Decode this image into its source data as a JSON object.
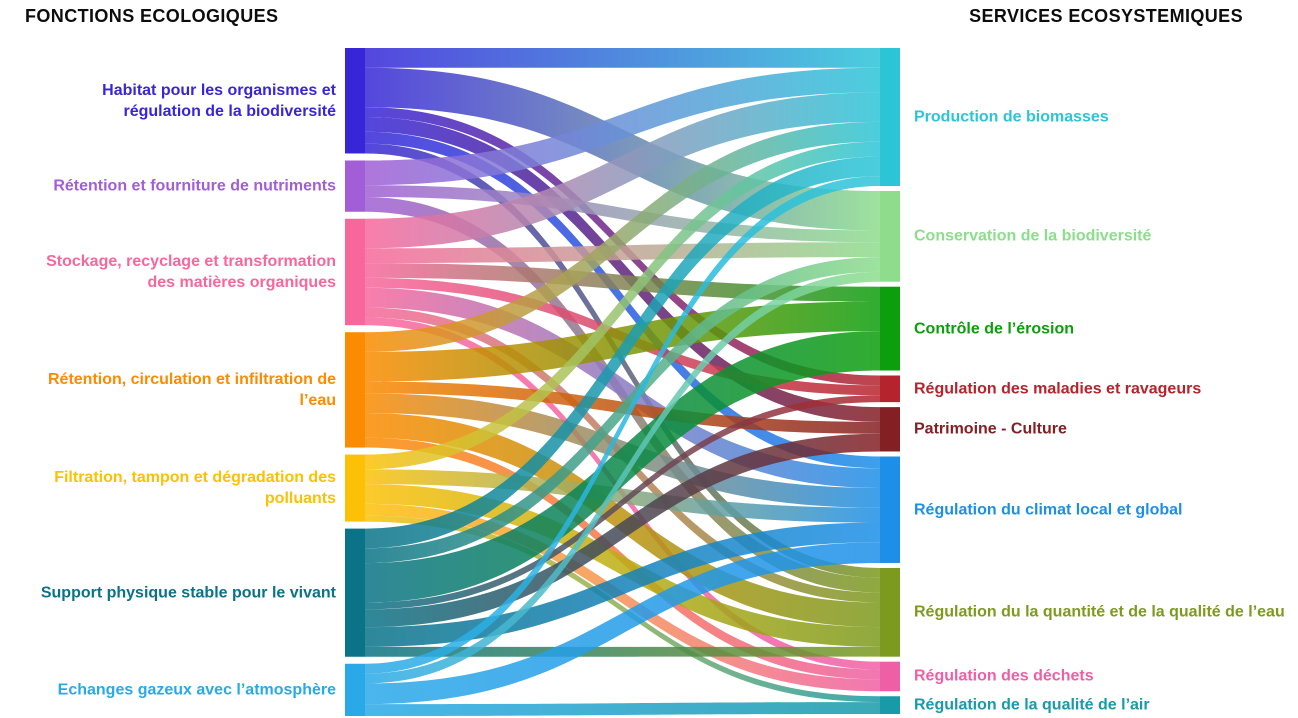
{
  "chart_data": {
    "type": "sankey",
    "left_title": "FONCTIONS ECOLOGIQUES",
    "right_title": "SERVICES ECOSYSTEMIQUES",
    "flow_style": "gradient-source-to-target",
    "sources": [
      {
        "id": "habitat",
        "label": "Habitat pour les organismes et régulation de la biodiversité",
        "color": "#3626d8"
      },
      {
        "id": "nutriments",
        "label": "Rétention et fourniture de nutriments",
        "color": "#a15ed6"
      },
      {
        "id": "matieres-organiques",
        "label": "Stockage, recyclage et transformation des matières organiques",
        "color": "#f8679c"
      },
      {
        "id": "infiltration-eau",
        "label": "Rétention, circulation et infiltration de l’eau",
        "color": "#fb8b00"
      },
      {
        "id": "polluants",
        "label": "Filtration, tampon et dégradation des polluants",
        "color": "#fcc107"
      },
      {
        "id": "support-physique",
        "label": "Support physique stable pour le vivant",
        "color": "#0a7387"
      },
      {
        "id": "echanges-gazeux",
        "label": "Echanges gazeux avec l’atmosphère",
        "color": "#2aa9e8"
      }
    ],
    "targets": [
      {
        "id": "biomasses",
        "label": "Production de biomasses",
        "color": "#2cc5d8"
      },
      {
        "id": "biodiversite",
        "label": "Conservation de la biodiversité",
        "color": "#8ddd8d"
      },
      {
        "id": "erosion",
        "label": "Contrôle de l’érosion",
        "color": "#0d9e0d"
      },
      {
        "id": "maladies",
        "label": "Régulation des maladies et ravageurs",
        "color": "#b5242c"
      },
      {
        "id": "patrimoine",
        "label": "Patrimoine - Culture",
        "color": "#841f24"
      },
      {
        "id": "climat",
        "label": "Régulation du climat local et global",
        "color": "#1d8fe8"
      },
      {
        "id": "qualite-eau",
        "label": "Régulation du la quantité et de la qualité de l’eau",
        "color": "#7c9a1e"
      },
      {
        "id": "dechets",
        "label": "Régulation des déchets",
        "color": "#ef5fa5"
      },
      {
        "id": "qualite-air",
        "label": "Régulation de la qualité de l’air",
        "color": "#189aa8"
      }
    ],
    "links": [
      {
        "source": 0,
        "target": 0,
        "value": 20
      },
      {
        "source": 0,
        "target": 1,
        "value": 40
      },
      {
        "source": 0,
        "target": 3,
        "value": 10
      },
      {
        "source": 0,
        "target": 4,
        "value": 15
      },
      {
        "source": 0,
        "target": 5,
        "value": 12
      },
      {
        "source": 0,
        "target": 6,
        "value": 10
      },
      {
        "source": 1,
        "target": 0,
        "value": 25
      },
      {
        "source": 1,
        "target": 1,
        "value": 12
      },
      {
        "source": 1,
        "target": 6,
        "value": 15
      },
      {
        "source": 2,
        "target": 0,
        "value": 30
      },
      {
        "source": 2,
        "target": 1,
        "value": 15
      },
      {
        "source": 2,
        "target": 2,
        "value": 15
      },
      {
        "source": 2,
        "target": 3,
        "value": 10
      },
      {
        "source": 2,
        "target": 5,
        "value": 20
      },
      {
        "source": 2,
        "target": 6,
        "value": 10
      },
      {
        "source": 2,
        "target": 7,
        "value": 8
      },
      {
        "source": 3,
        "target": 0,
        "value": 20
      },
      {
        "source": 3,
        "target": 2,
        "value": 30
      },
      {
        "source": 3,
        "target": 4,
        "value": 12
      },
      {
        "source": 3,
        "target": 5,
        "value": 20
      },
      {
        "source": 3,
        "target": 6,
        "value": 25
      },
      {
        "source": 3,
        "target": 7,
        "value": 10
      },
      {
        "source": 4,
        "target": 0,
        "value": 15
      },
      {
        "source": 4,
        "target": 5,
        "value": 15
      },
      {
        "source": 4,
        "target": 6,
        "value": 20
      },
      {
        "source": 4,
        "target": 7,
        "value": 12
      },
      {
        "source": 4,
        "target": 8,
        "value": 6
      },
      {
        "source": 5,
        "target": 0,
        "value": 20
      },
      {
        "source": 5,
        "target": 1,
        "value": 15
      },
      {
        "source": 5,
        "target": 2,
        "value": 40
      },
      {
        "source": 5,
        "target": 3,
        "value": 7
      },
      {
        "source": 5,
        "target": 4,
        "value": 18
      },
      {
        "source": 5,
        "target": 5,
        "value": 20
      },
      {
        "source": 5,
        "target": 6,
        "value": 10
      },
      {
        "source": 6,
        "target": 0,
        "value": 10
      },
      {
        "source": 6,
        "target": 1,
        "value": 10
      },
      {
        "source": 6,
        "target": 5,
        "value": 21
      },
      {
        "source": 6,
        "target": 8,
        "value": 12
      }
    ]
  }
}
